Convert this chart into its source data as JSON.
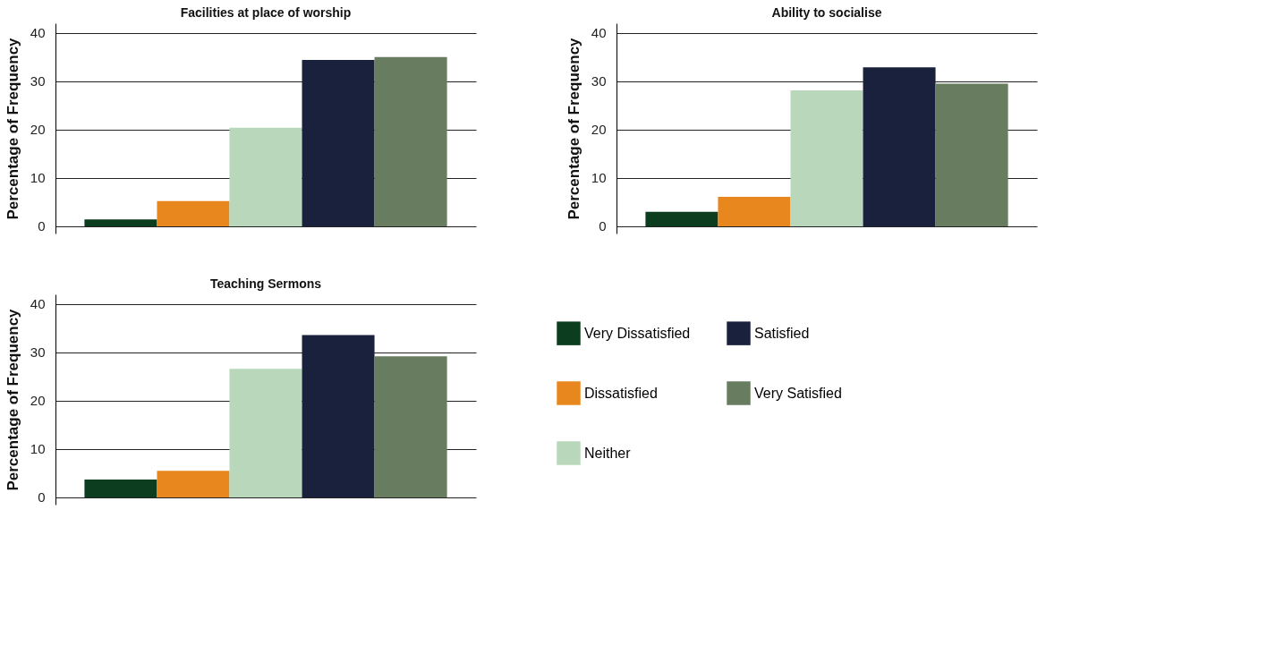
{
  "chart_data": [
    {
      "type": "bar",
      "title": "Facilities at place of worship",
      "ylabel": "Percentage of Frequency",
      "categories": [
        null
      ],
      "ylim": [
        -1.5,
        42
      ],
      "yticks": [
        0,
        10,
        20,
        30,
        40
      ],
      "grid": "y",
      "tick_labels": "y",
      "series": [
        {
          "color": "#0b3d1e",
          "values": [
            1.4
          ]
        },
        {
          "color": "#e8871e",
          "values": [
            5.2
          ]
        },
        {
          "color": "#b8d7bb",
          "values": [
            20.4
          ]
        },
        {
          "color": "#19213d",
          "values": [
            34.4
          ]
        },
        {
          "color": "#687c5f",
          "values": [
            35.0
          ]
        }
      ]
    },
    {
      "type": "bar",
      "title": "Ability to socialise",
      "ylabel": "Percentage of Frequency",
      "categories": [
        null
      ],
      "ylim": [
        -1.5,
        42
      ],
      "yticks": [
        0,
        10,
        20,
        30,
        40
      ],
      "grid": "y",
      "tick_labels": "y",
      "series": [
        {
          "color": "#0b3d1e",
          "values": [
            3.0
          ]
        },
        {
          "color": "#e8871e",
          "values": [
            6.1
          ]
        },
        {
          "color": "#b8d7bb",
          "values": [
            28.1
          ]
        },
        {
          "color": "#19213d",
          "values": [
            32.9
          ]
        },
        {
          "color": "#687c5f",
          "values": [
            29.5
          ]
        }
      ]
    },
    {
      "type": "bar",
      "title": "Teaching Sermons",
      "ylabel": "Percentage of Frequency",
      "categories": [
        null
      ],
      "ylim": [
        -1.5,
        42
      ],
      "yticks": [
        0,
        10,
        20,
        30,
        40
      ],
      "grid": "y",
      "tick_labels": "y",
      "legend": "right",
      "series": [
        {
          "name": "Very Dissatisfied",
          "color": "#0b3d1e",
          "values": [
            3.7
          ]
        },
        {
          "name": "Dissatisfied",
          "color": "#e8871e",
          "values": [
            5.5
          ]
        },
        {
          "name": "Neither",
          "color": "#b8d7bb",
          "values": [
            26.6
          ]
        },
        {
          "name": "Satisfied",
          "color": "#19213d",
          "values": [
            33.6
          ]
        },
        {
          "name": "Very Satisfied",
          "color": "#687c5f",
          "values": [
            29.2
          ]
        }
      ]
    }
  ]
}
